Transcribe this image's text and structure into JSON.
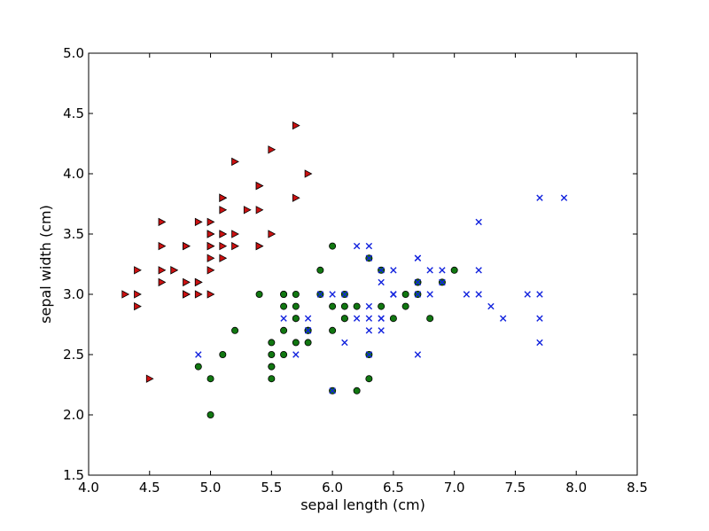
{
  "chart_data": {
    "type": "scatter",
    "title": "",
    "xlabel": "sepal length (cm)",
    "ylabel": "sepal width (cm)",
    "xlim": [
      4.0,
      8.5
    ],
    "ylim": [
      1.5,
      5.0
    ],
    "xticks": [
      "4.0",
      "4.5",
      "5.0",
      "5.5",
      "6.0",
      "6.5",
      "7.0",
      "7.5",
      "8.0",
      "8.5"
    ],
    "yticks": [
      "1.5",
      "2.0",
      "2.5",
      "3.0",
      "3.5",
      "4.0",
      "4.5",
      "5.0"
    ],
    "grid": false,
    "legend": "none",
    "series": [
      {
        "marker": "triangle-right",
        "color": "#cc1111",
        "points": [
          [
            5.1,
            3.5
          ],
          [
            4.9,
            3.0
          ],
          [
            4.7,
            3.2
          ],
          [
            4.6,
            3.1
          ],
          [
            5.0,
            3.6
          ],
          [
            5.4,
            3.9
          ],
          [
            4.6,
            3.4
          ],
          [
            5.0,
            3.4
          ],
          [
            4.4,
            2.9
          ],
          [
            4.9,
            3.1
          ],
          [
            5.4,
            3.7
          ],
          [
            4.8,
            3.4
          ],
          [
            4.8,
            3.0
          ],
          [
            4.3,
            3.0
          ],
          [
            5.8,
            4.0
          ],
          [
            5.7,
            4.4
          ],
          [
            5.4,
            3.9
          ],
          [
            5.1,
            3.5
          ],
          [
            5.7,
            3.8
          ],
          [
            5.1,
            3.8
          ],
          [
            5.4,
            3.4
          ],
          [
            5.1,
            3.7
          ],
          [
            4.6,
            3.6
          ],
          [
            5.1,
            3.3
          ],
          [
            4.8,
            3.4
          ],
          [
            5.0,
            3.0
          ],
          [
            5.0,
            3.4
          ],
          [
            5.2,
            3.5
          ],
          [
            5.2,
            3.4
          ],
          [
            4.7,
            3.2
          ],
          [
            4.8,
            3.1
          ],
          [
            5.4,
            3.4
          ],
          [
            5.2,
            4.1
          ],
          [
            5.5,
            4.2
          ],
          [
            4.9,
            3.1
          ],
          [
            5.0,
            3.2
          ],
          [
            5.5,
            3.5
          ],
          [
            4.9,
            3.6
          ],
          [
            4.4,
            3.0
          ],
          [
            5.1,
            3.4
          ],
          [
            5.0,
            3.5
          ],
          [
            4.5,
            2.3
          ],
          [
            4.4,
            3.2
          ],
          [
            5.0,
            3.5
          ],
          [
            5.1,
            3.8
          ],
          [
            4.8,
            3.0
          ],
          [
            5.1,
            3.8
          ],
          [
            4.6,
            3.2
          ],
          [
            5.3,
            3.7
          ],
          [
            5.0,
            3.3
          ]
        ]
      },
      {
        "marker": "circle",
        "color": "#117711",
        "points": [
          [
            7.0,
            3.2
          ],
          [
            6.4,
            3.2
          ],
          [
            6.9,
            3.1
          ],
          [
            5.5,
            2.3
          ],
          [
            6.5,
            2.8
          ],
          [
            5.7,
            2.8
          ],
          [
            6.3,
            3.3
          ],
          [
            4.9,
            2.4
          ],
          [
            6.6,
            2.9
          ],
          [
            5.2,
            2.7
          ],
          [
            5.0,
            2.0
          ],
          [
            5.9,
            3.0
          ],
          [
            6.0,
            2.2
          ],
          [
            6.1,
            2.9
          ],
          [
            5.6,
            2.9
          ],
          [
            6.7,
            3.1
          ],
          [
            5.6,
            3.0
          ],
          [
            5.8,
            2.7
          ],
          [
            6.2,
            2.2
          ],
          [
            5.6,
            2.5
          ],
          [
            5.9,
            3.2
          ],
          [
            6.1,
            2.8
          ],
          [
            6.3,
            2.5
          ],
          [
            6.1,
            2.8
          ],
          [
            6.4,
            2.9
          ],
          [
            6.6,
            3.0
          ],
          [
            6.8,
            2.8
          ],
          [
            6.7,
            3.0
          ],
          [
            6.0,
            2.9
          ],
          [
            5.7,
            2.6
          ],
          [
            5.5,
            2.4
          ],
          [
            5.5,
            2.4
          ],
          [
            5.8,
            2.7
          ],
          [
            6.0,
            2.7
          ],
          [
            5.4,
            3.0
          ],
          [
            6.0,
            3.4
          ],
          [
            6.7,
            3.1
          ],
          [
            6.3,
            2.3
          ],
          [
            5.6,
            3.0
          ],
          [
            5.5,
            2.5
          ],
          [
            5.5,
            2.6
          ],
          [
            6.1,
            3.0
          ],
          [
            5.8,
            2.6
          ],
          [
            5.0,
            2.3
          ],
          [
            5.6,
            2.7
          ],
          [
            5.7,
            3.0
          ],
          [
            5.7,
            2.9
          ],
          [
            6.2,
            2.9
          ],
          [
            5.1,
            2.5
          ],
          [
            5.7,
            2.8
          ]
        ]
      },
      {
        "marker": "x",
        "color": "#1122dd",
        "points": [
          [
            6.3,
            3.3
          ],
          [
            5.8,
            2.7
          ],
          [
            7.1,
            3.0
          ],
          [
            6.3,
            2.9
          ],
          [
            6.5,
            3.0
          ],
          [
            7.6,
            3.0
          ],
          [
            4.9,
            2.5
          ],
          [
            7.3,
            2.9
          ],
          [
            6.7,
            2.5
          ],
          [
            7.2,
            3.6
          ],
          [
            6.5,
            3.2
          ],
          [
            6.4,
            2.7
          ],
          [
            6.8,
            3.0
          ],
          [
            5.7,
            2.5
          ],
          [
            5.8,
            2.8
          ],
          [
            6.4,
            3.2
          ],
          [
            6.5,
            3.0
          ],
          [
            7.7,
            3.8
          ],
          [
            7.7,
            2.6
          ],
          [
            6.0,
            2.2
          ],
          [
            6.9,
            3.2
          ],
          [
            5.6,
            2.8
          ],
          [
            7.7,
            2.8
          ],
          [
            6.3,
            2.7
          ],
          [
            6.7,
            3.3
          ],
          [
            7.2,
            3.2
          ],
          [
            6.2,
            2.8
          ],
          [
            6.1,
            3.0
          ],
          [
            6.4,
            2.8
          ],
          [
            7.2,
            3.0
          ],
          [
            7.4,
            2.8
          ],
          [
            7.9,
            3.8
          ],
          [
            6.4,
            2.8
          ],
          [
            6.3,
            2.8
          ],
          [
            6.1,
            2.6
          ],
          [
            7.7,
            3.0
          ],
          [
            6.3,
            3.4
          ],
          [
            6.4,
            3.1
          ],
          [
            6.0,
            3.0
          ],
          [
            6.9,
            3.1
          ],
          [
            6.7,
            3.1
          ],
          [
            6.9,
            3.1
          ],
          [
            5.8,
            2.7
          ],
          [
            6.8,
            3.2
          ],
          [
            6.7,
            3.3
          ],
          [
            6.7,
            3.0
          ],
          [
            6.3,
            2.5
          ],
          [
            6.5,
            3.0
          ],
          [
            6.2,
            3.4
          ],
          [
            5.9,
            3.0
          ]
        ]
      }
    ]
  }
}
